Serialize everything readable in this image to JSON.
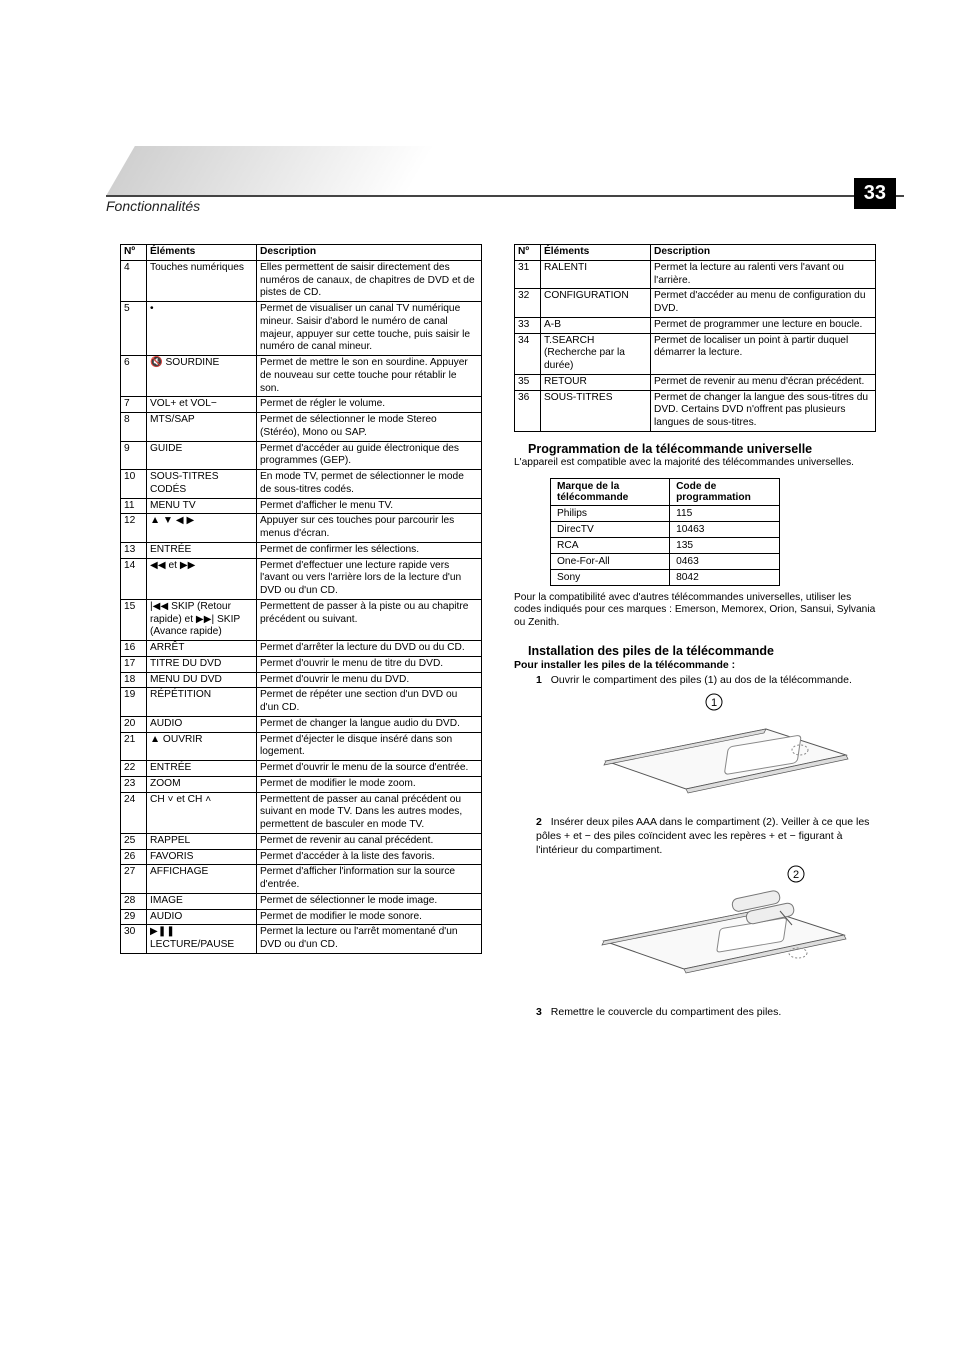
{
  "page": {
    "section_title": "Fonctionnalités",
    "number": "33"
  },
  "columns": {
    "num": "Nº",
    "elements": "Éléments",
    "desc": "Description"
  },
  "table1": [
    {
      "n": "4",
      "el": "Touches numériques",
      "d": "Elles permettent de saisir directement des numéros de canaux, de chapitres de DVD et de pistes de CD."
    },
    {
      "n": "5",
      "el": "•",
      "d": "Permet de visualiser un canal TV numérique mineur. Saisir d'abord le numéro de canal majeur, appuyer sur cette touche, puis saisir le numéro de canal mineur."
    },
    {
      "n": "6",
      "el": "🔇 SOURDINE",
      "d": "Permet de mettre le son en sourdine. Appuyer de nouveau sur cette touche pour rétablir le son."
    },
    {
      "n": "7",
      "el": "VOL+ et VOL−",
      "d": "Permet de régler le volume."
    },
    {
      "n": "8",
      "el": "MTS/SAP",
      "d": "Permet de sélectionner le mode Stereo (Stéréo), Mono ou SAP."
    },
    {
      "n": "9",
      "el": "GUIDE",
      "d": "Permet d'accéder au guide électronique des programmes (GEP)."
    },
    {
      "n": "10",
      "el": "SOUS-TITRES CODÉS",
      "d": "En mode TV, permet de sélectionner le mode de sous-titres codés."
    },
    {
      "n": "11",
      "el": "MENU TV",
      "d": "Permet d'afficher le menu TV."
    },
    {
      "n": "12",
      "el": "▲ ▼ ◀ ▶",
      "d": "Appuyer sur ces touches pour parcourir les menus d'écran."
    },
    {
      "n": "13",
      "el": "ENTRÉE",
      "d": "Permet de confirmer les sélections."
    },
    {
      "n": "14",
      "el": "◀◀ et ▶▶",
      "d": "Permet d'effectuer une lecture rapide vers l'avant ou vers l'arrière lors de la lecture d'un DVD ou d'un CD."
    },
    {
      "n": "15",
      "el": "|◀◀ SKIP (Retour rapide) et ▶▶| SKIP (Avance rapide)",
      "d": "Permettent de passer à la piste ou au chapitre précédent ou suivant."
    },
    {
      "n": "16",
      "el": "ARRÊT",
      "d": "Permet d'arrêter la lecture du DVD ou du CD."
    },
    {
      "n": "17",
      "el": "TITRE DU DVD",
      "d": "Permet d'ouvrir le menu de titre du DVD."
    },
    {
      "n": "18",
      "el": "MENU DU DVD",
      "d": "Permet d'ouvrir le menu du DVD."
    },
    {
      "n": "19",
      "el": "RÉPÉTITION",
      "d": "Permet de répéter une section d'un DVD ou d'un CD."
    },
    {
      "n": "20",
      "el": "AUDIO",
      "d": "Permet de changer la langue audio du DVD."
    },
    {
      "n": "21",
      "el": "▲ OUVRIR",
      "d": "Permet d'éjecter le disque inséré dans son logement."
    },
    {
      "n": "22",
      "el": "ENTRÉE",
      "d": "Permet d'ouvrir le menu de la source d'entrée."
    },
    {
      "n": "23",
      "el": "ZOOM",
      "d": "Permet de modifier le mode zoom."
    },
    {
      "n": "24",
      "el": "CH ˅ et CH ˄",
      "d": "Permettent de passer au canal précédent ou suivant en mode TV. Dans les autres modes, permettent de basculer en mode TV."
    },
    {
      "n": "25",
      "el": "RAPPEL",
      "d": "Permet de revenir au canal précédent."
    },
    {
      "n": "26",
      "el": "FAVORIS",
      "d": "Permet d'accéder à la liste des favoris."
    },
    {
      "n": "27",
      "el": "AFFICHAGE",
      "d": "Permet d'afficher l'information sur la source d'entrée."
    },
    {
      "n": "28",
      "el": "IMAGE",
      "d": "Permet de sélectionner le mode image."
    },
    {
      "n": "29",
      "el": "AUDIO",
      "d": "Permet de modifier le mode sonore."
    },
    {
      "n": "30",
      "el": "▶❚❚ LECTURE/PAUSE",
      "d": "Permet la lecture ou l'arrêt momentané d'un DVD ou d'un CD."
    }
  ],
  "table2": [
    {
      "n": "31",
      "el": "RALENTI",
      "d": "Permet la lecture au ralenti vers l'avant ou l'arrière."
    },
    {
      "n": "32",
      "el": "CONFIGURATION",
      "d": "Permet d'accéder au menu de configuration du DVD."
    },
    {
      "n": "33",
      "el": "A-B",
      "d": "Permet de programmer une lecture en boucle."
    },
    {
      "n": "34",
      "el": "T.SEARCH (Recherche par la durée)",
      "d": "Permet de localiser un point à partir duquel démarrer la lecture."
    },
    {
      "n": "35",
      "el": "RETOUR",
      "d": "Permet de revenir au menu d'écran précédent."
    },
    {
      "n": "36",
      "el": "SOUS-TITRES",
      "d": "Permet de changer la langue des sous-titres du DVD. Certains DVD n'offrent pas plusieurs langues de sous-titres."
    }
  ],
  "prog": {
    "heading": "Programmation de la télécommande universelle",
    "intro": "L'appareil est compatible avec la majorité des télécommandes universelles.",
    "th_brand": "Marque de la télécommande",
    "th_code": "Code de programmation",
    "rows": [
      {
        "brand": "Philips",
        "code": "115"
      },
      {
        "brand": "DirecTV",
        "code": "10463"
      },
      {
        "brand": "RCA",
        "code": "135"
      },
      {
        "brand": "One-For-All",
        "code": "0463"
      },
      {
        "brand": "Sony",
        "code": "8042"
      }
    ],
    "note": "Pour la compatibilité avec d'autres télécommandes universelles, utiliser les codes indiqués pour ces marques :  Emerson, Memorex, Orion, Sansui, Sylvania ou Zenith."
  },
  "install": {
    "heading": "Installation des piles de la télécommande",
    "sub": "Pour installer les piles de la télécommande :",
    "step1": "Ouvrir le compartiment des piles (1) au dos de la télécommande.",
    "step2": "Insérer deux piles AAA dans le compartiment (2). Veiller à ce que les pôles + et − des piles coïncident avec les repères + et − figurant à l'intérieur du compartiment.",
    "step3": "Remettre le couvercle du compartiment des piles.",
    "s1": "1",
    "s2": "2",
    "s3": "3"
  },
  "fig": {
    "label1": "1",
    "label2": "2"
  }
}
